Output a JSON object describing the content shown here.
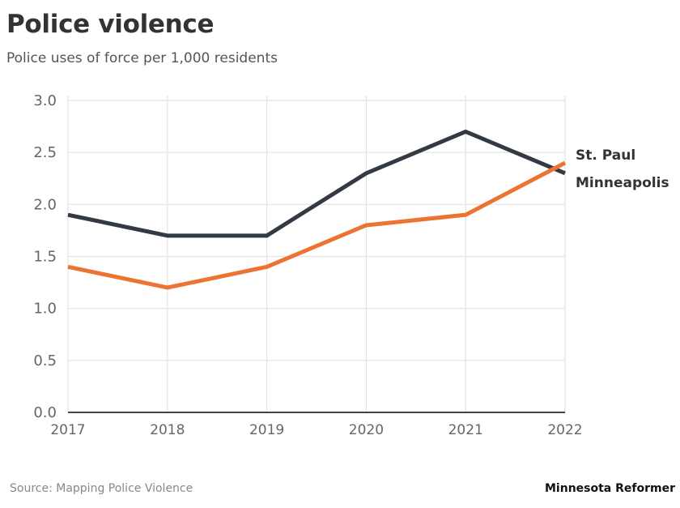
{
  "chart_data": {
    "type": "line",
    "title": "Police violence",
    "subtitle": "Police uses of force per 1,000 residents",
    "xlabel": "",
    "ylabel": "",
    "x": [
      "2017",
      "2018",
      "2019",
      "2020",
      "2021",
      "2022"
    ],
    "ylim": [
      0,
      3.0
    ],
    "yticks": [
      "0.0",
      "0.5",
      "1.0",
      "1.5",
      "2.0",
      "2.5",
      "3.0"
    ],
    "grid": true,
    "legend": "direct labels at right end of lines",
    "series": [
      {
        "name": "Minneapolis",
        "color": "#333a44",
        "values": [
          1.9,
          1.7,
          1.7,
          2.3,
          2.7,
          2.3
        ]
      },
      {
        "name": "St. Paul",
        "color": "#ec7433",
        "values": [
          1.4,
          1.2,
          1.4,
          1.8,
          1.9,
          2.4
        ]
      }
    ]
  },
  "footer": {
    "source": "Source: Mapping Police Violence",
    "credit": "Minnesota Reformer"
  }
}
